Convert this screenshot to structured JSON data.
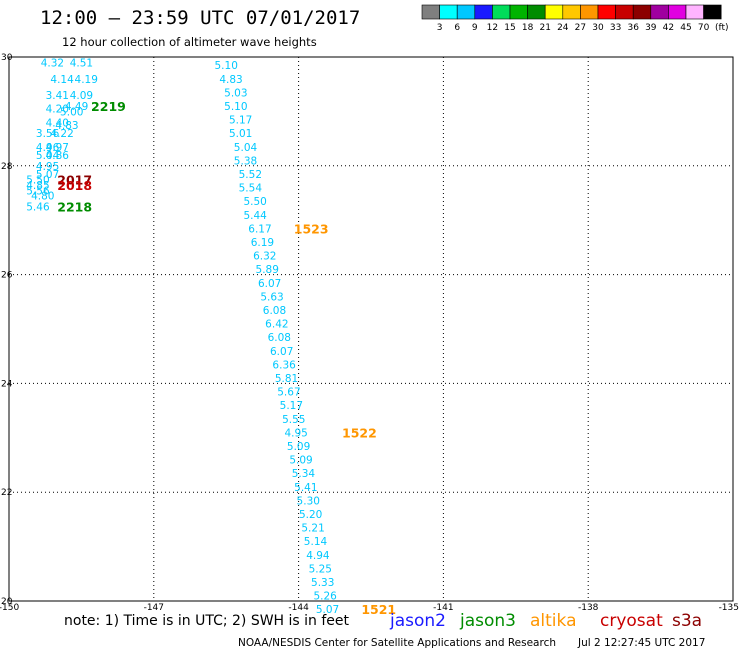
{
  "header": {
    "title": "12:00 – 23:59 UTC 07/01/2017",
    "subtitle": "12 hour collection of altimeter wave heights"
  },
  "colorbar": {
    "unit": "(ft)",
    "ticks": [
      "3",
      "6",
      "9",
      "12",
      "15",
      "18",
      "21",
      "24",
      "27",
      "30",
      "33",
      "36",
      "39",
      "42",
      "45",
      "70"
    ],
    "colors": [
      "#7f7f7f",
      "#00ffff",
      "#00c8ff",
      "#1a1aff",
      "#00dc5a",
      "#00b400",
      "#008c00",
      "#ffff00",
      "#ffc800",
      "#ff9600",
      "#ff0000",
      "#c80000",
      "#8c0000",
      "#a000a0",
      "#e100e1",
      "#ffb4ff",
      "#000000"
    ]
  },
  "footer": {
    "note": "note: 1) Time is in UTC; 2) SWH is in feet",
    "credit": "NOAA/NESDIS Center for Satellite Applications and Research",
    "timestamp": "Jul  2 12:27:45 UTC 2017"
  },
  "legend": [
    {
      "name": "jason2",
      "color": "#1a1aff"
    },
    {
      "name": "jason3",
      "color": "#008c00"
    },
    {
      "name": "altika",
      "color": "#ff9600"
    },
    {
      "name": "cryosat",
      "color": "#c80000"
    },
    {
      "name": "s3a",
      "color": "#8c0000"
    }
  ],
  "chart_data": {
    "type": "scatter",
    "xlim": [
      -150,
      -135
    ],
    "ylim": [
      20,
      30
    ],
    "x_ticks": [
      -150,
      -147,
      -144,
      -141,
      -138,
      -135
    ],
    "x_tick_labels": [
      "-150",
      "-147",
      "-144",
      "-141",
      "-138",
      "-135"
    ],
    "y_ticks": [
      20,
      22,
      24,
      26,
      28,
      30
    ],
    "y_tick_labels": [
      "20",
      "22",
      "24",
      "26",
      "28",
      "30"
    ],
    "grid": true,
    "value_color": "#00c8ff",
    "series": [
      {
        "points": [
          [
            -149.1,
            29.9,
            "4.32"
          ],
          [
            -148.5,
            29.9,
            "4.51"
          ],
          [
            -148.9,
            29.6,
            "4.14"
          ],
          [
            -148.4,
            29.6,
            "4.19"
          ],
          [
            -149.0,
            29.3,
            "3.41"
          ],
          [
            -148.5,
            29.3,
            "4.09"
          ],
          [
            -148.6,
            29.1,
            "4.49"
          ],
          [
            -149.0,
            29.05,
            "4.20"
          ],
          [
            -148.7,
            29.0,
            "5.00"
          ],
          [
            -149.0,
            28.8,
            "4.40"
          ],
          [
            -148.8,
            28.75,
            "4.83"
          ],
          [
            -149.2,
            28.6,
            "3.56"
          ],
          [
            -148.9,
            28.6,
            "4.22"
          ],
          [
            -149.2,
            28.35,
            "4.96"
          ],
          [
            -149.0,
            28.35,
            "4.97"
          ],
          [
            -149.2,
            28.2,
            "5.04"
          ],
          [
            -149.0,
            28.2,
            "4.86"
          ],
          [
            -149.2,
            28.0,
            "4.95"
          ],
          [
            -149.2,
            27.85,
            "5.07"
          ],
          [
            -149.4,
            27.75,
            "5.50"
          ],
          [
            -149.4,
            27.65,
            "4.85"
          ],
          [
            -149.4,
            27.55,
            "5.56"
          ],
          [
            -149.3,
            27.45,
            "4.80"
          ],
          [
            -149.4,
            27.25,
            "5.46"
          ]
        ]
      },
      {
        "points": [
          [
            -145.5,
            29.85,
            "5.10"
          ],
          [
            -145.4,
            29.6,
            "4.83"
          ],
          [
            -145.3,
            29.35,
            "5.03"
          ],
          [
            -145.3,
            29.1,
            "5.10"
          ],
          [
            -145.2,
            28.85,
            "5.17"
          ],
          [
            -145.2,
            28.6,
            "5.01"
          ],
          [
            -145.1,
            28.35,
            "5.04"
          ],
          [
            -145.1,
            28.1,
            "5.38"
          ],
          [
            -145.0,
            27.85,
            "5.52"
          ],
          [
            -145.0,
            27.6,
            "5.54"
          ],
          [
            -144.9,
            27.35,
            "5.50"
          ],
          [
            -144.9,
            27.1,
            "5.44"
          ],
          [
            -144.8,
            26.85,
            "6.17"
          ],
          [
            -144.75,
            26.6,
            "6.19"
          ],
          [
            -144.7,
            26.35,
            "6.32"
          ],
          [
            -144.65,
            26.1,
            "5.89"
          ],
          [
            -144.6,
            25.85,
            "6.07"
          ],
          [
            -144.55,
            25.6,
            "5.63"
          ],
          [
            -144.5,
            25.35,
            "6.08"
          ],
          [
            -144.45,
            25.1,
            "6.42"
          ],
          [
            -144.4,
            24.85,
            "6.08"
          ],
          [
            -144.35,
            24.6,
            "6.07"
          ],
          [
            -144.3,
            24.35,
            "6.36"
          ],
          [
            -144.25,
            24.1,
            "5.81"
          ],
          [
            -144.2,
            23.85,
            "5.67"
          ],
          [
            -144.15,
            23.6,
            "5.17"
          ],
          [
            -144.1,
            23.35,
            "5.55"
          ],
          [
            -144.05,
            23.1,
            "4.95"
          ],
          [
            -144.0,
            22.85,
            "5.09"
          ],
          [
            -143.95,
            22.6,
            "5.09"
          ],
          [
            -143.9,
            22.35,
            "5.34"
          ],
          [
            -143.85,
            22.1,
            "5.41"
          ],
          [
            -143.8,
            21.85,
            "5.30"
          ],
          [
            -143.75,
            21.6,
            "5.20"
          ],
          [
            -143.7,
            21.35,
            "5.21"
          ],
          [
            -143.65,
            21.1,
            "5.14"
          ],
          [
            -143.6,
            20.85,
            "4.94"
          ],
          [
            -143.55,
            20.6,
            "5.25"
          ],
          [
            -143.5,
            20.35,
            "5.33"
          ],
          [
            -143.45,
            20.1,
            "5.26"
          ],
          [
            -143.4,
            19.85,
            "5.07"
          ]
        ]
      }
    ],
    "time_labels": [
      {
        "x": -148.3,
        "y": 29.1,
        "text": "2219",
        "color": "#008c00"
      },
      {
        "x": -149.0,
        "y": 27.75,
        "text": "2017",
        "color": "#8c0000"
      },
      {
        "x": -149.0,
        "y": 27.65,
        "text": "2018",
        "color": "#c80000"
      },
      {
        "x": -149.0,
        "y": 27.25,
        "text": "2218",
        "color": "#008c00"
      },
      {
        "x": -144.1,
        "y": 26.85,
        "text": "1523",
        "color": "#ff9600"
      },
      {
        "x": -143.1,
        "y": 23.1,
        "text": "1522",
        "color": "#ff9600"
      },
      {
        "x": -142.7,
        "y": 19.85,
        "text": "1521",
        "color": "#ff9600"
      }
    ]
  }
}
